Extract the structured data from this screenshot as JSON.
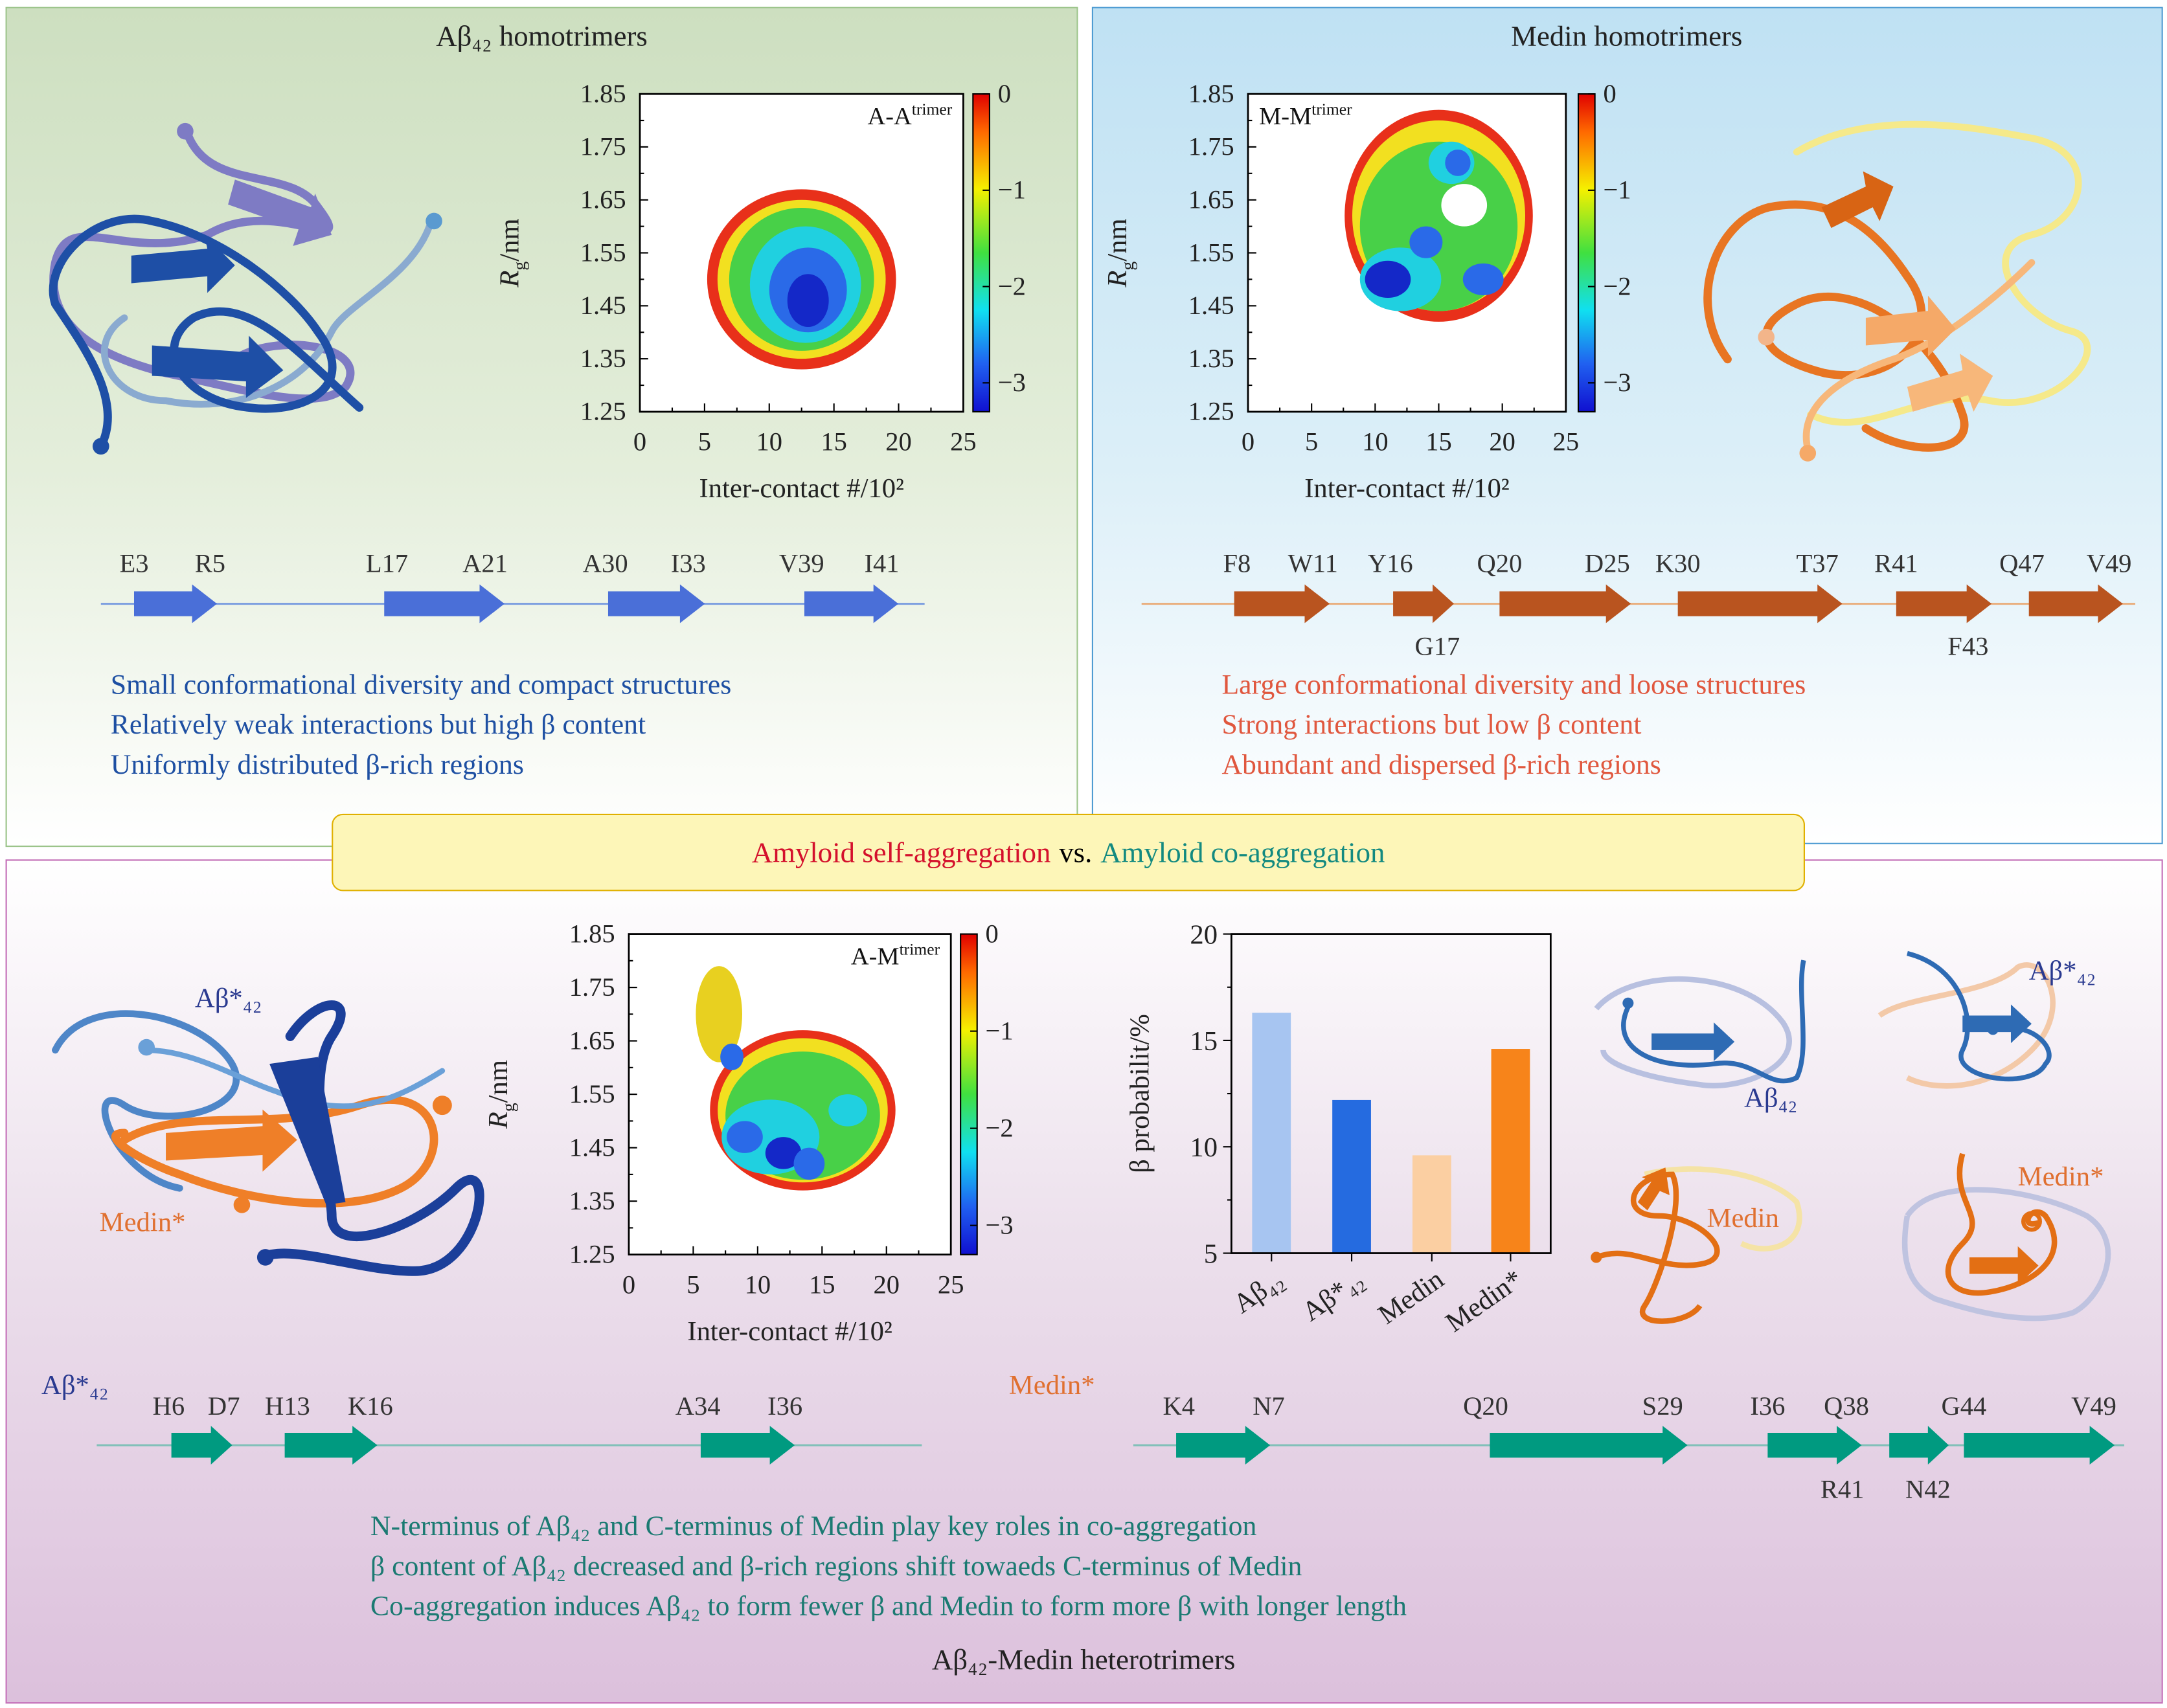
{
  "panels": {
    "abeta": {
      "title": "Aβ₄₂ homotrimers",
      "descriptions": [
        "Small conformational diversity and compact structures",
        "Relatively weak interactions but high β content",
        "Uniformly distributed β-rich regions"
      ],
      "sequence": {
        "labels_top": [
          "E3",
          "R5",
          "L17",
          "A21",
          "A30",
          "I33",
          "V39",
          "I41"
        ],
        "labels_bottom": [],
        "color": "#4a6fd8"
      },
      "text_color": "#1d4fa2"
    },
    "medin": {
      "title": "Medin homotrimers",
      "descriptions": [
        "Large conformational diversity and loose structures",
        "Strong interactions but low β content",
        "Abundant and dispersed β-rich regions"
      ],
      "sequence": {
        "labels_top": [
          "F8",
          "W11",
          "Y16",
          "Q20",
          "D25",
          "K30",
          "T37",
          "R41",
          "Q47",
          "V49"
        ],
        "labels_bottom": [
          "G17",
          "F43"
        ],
        "color": "#b9541f"
      },
      "text_color": "#e0573e"
    },
    "hetero": {
      "title": "Aβ₄₂-Medin heterotrimers",
      "descriptions": [
        "N-terminus of Aβ₄₂ and C-terminus of Medin play key roles in co-aggregation",
        "β content of Aβ₄₂ decreased and β-rich regions shift towaeds C-terminus of Medin",
        "Co-aggregation induces Aβ₄₂ to form fewer β and Medin to form more β with longer length"
      ],
      "text_color": "#1b7a72",
      "seq_abeta": {
        "name": "Aβ*₄₂",
        "labels_top": [
          "H6",
          "D7",
          "H13",
          "K16",
          "A34",
          "I36"
        ]
      },
      "seq_medin": {
        "name": "Medin*",
        "labels_top": [
          "K4",
          "N7",
          "Q20",
          "S29",
          "I36",
          "Q38",
          "G44",
          "V49"
        ],
        "labels_bottom": [
          "R41",
          "N42"
        ]
      },
      "sequence_color": "#009a80",
      "structure_labels": {
        "main_abeta": "Aβ*₄₂",
        "main_medin": "Medin*",
        "small_abeta": "Aβ₄₂",
        "small_abeta_star": "Aβ*₄₂",
        "small_medin": "Medin",
        "small_medin_star": "Medin*"
      }
    }
  },
  "banner": {
    "self": "Amyloid self-aggregation",
    "vs": "vs.",
    "co": "Amyloid co-aggregation",
    "self_color": "#d4102c",
    "co_color": "#138a80"
  },
  "chart_data": [
    {
      "type": "heatmap",
      "annotation": "A-A",
      "annotation_sup": "trimer",
      "xlabel": "Inter-contact #/10²",
      "ylabel_main": "R",
      "ylabel_sub": "g",
      "ylabel_unit": "/nm",
      "xlim": [
        0,
        25
      ],
      "ylim": [
        1.25,
        1.85
      ],
      "xticks": [
        "0",
        "5",
        "10",
        "15",
        "20",
        "25"
      ],
      "yticks": [
        "1.25",
        "1.35",
        "1.45",
        "1.55",
        "1.65",
        "1.75",
        "1.85"
      ],
      "colorbar": {
        "range": [
          -3.3,
          0
        ],
        "ticks": [
          "0",
          "−1",
          "−2",
          "−3"
        ],
        "colormap": "jet"
      }
    },
    {
      "type": "heatmap",
      "annotation": "M-M",
      "annotation_sup": "trimer",
      "xlabel": "Inter-contact #/10²",
      "ylabel_main": "R",
      "ylabel_sub": "g",
      "ylabel_unit": "/nm",
      "xlim": [
        0,
        25
      ],
      "ylim": [
        1.25,
        1.85
      ],
      "xticks": [
        "0",
        "5",
        "10",
        "15",
        "20",
        "25"
      ],
      "yticks": [
        "1.25",
        "1.35",
        "1.45",
        "1.55",
        "1.65",
        "1.75",
        "1.85"
      ],
      "colorbar": {
        "range": [
          -3.3,
          0
        ],
        "ticks": [
          "0",
          "−1",
          "−2",
          "−3"
        ],
        "colormap": "jet"
      }
    },
    {
      "type": "heatmap",
      "annotation": "A-M",
      "annotation_sup": "trimer",
      "xlabel": "Inter-contact #/10²",
      "ylabel_main": "R",
      "ylabel_sub": "g",
      "ylabel_unit": "/nm",
      "xlim": [
        0,
        25
      ],
      "ylim": [
        1.25,
        1.85
      ],
      "xticks": [
        "0",
        "5",
        "10",
        "15",
        "20",
        "25"
      ],
      "yticks": [
        "1.25",
        "1.35",
        "1.45",
        "1.55",
        "1.65",
        "1.75",
        "1.85"
      ],
      "colorbar": {
        "range": [
          -3.3,
          0
        ],
        "ticks": [
          "0",
          "−1",
          "−2",
          "−3"
        ],
        "colormap": "jet"
      }
    },
    {
      "type": "bar",
      "categories": [
        "Aβ₄₂",
        "Aβ*₄₂",
        "Medin",
        "Medin*"
      ],
      "values": [
        16.3,
        12.2,
        9.6,
        14.6
      ],
      "colors": [
        "#a7c5f1",
        "#256be0",
        "#fbcfa2",
        "#f7841a"
      ],
      "ylabel": "β probabilit/%",
      "ylim": [
        5,
        20
      ],
      "yticks": [
        "5",
        "10",
        "15",
        "20"
      ]
    }
  ]
}
